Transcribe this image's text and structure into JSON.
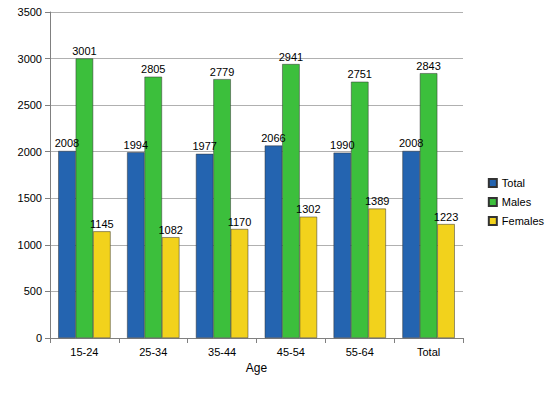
{
  "chart_data": {
    "type": "bar",
    "x_label": "Age",
    "categories": [
      "15-24",
      "25-34",
      "35-44",
      "45-54",
      "55-64",
      "Total"
    ],
    "series": [
      {
        "name": "Total",
        "color": "#2464b0",
        "values": [
          2008,
          1994,
          1977,
          2066,
          1990,
          2008
        ]
      },
      {
        "name": "Males",
        "color": "#3cbf3c",
        "values": [
          3001,
          2805,
          2779,
          2941,
          2751,
          2843
        ]
      },
      {
        "name": "Females",
        "color": "#f2d21c",
        "values": [
          1145,
          1082,
          1170,
          1302,
          1389,
          1223
        ]
      }
    ],
    "ylim": [
      0,
      3500
    ],
    "yticks": [
      0,
      500,
      1000,
      1500,
      2000,
      2500,
      3000,
      3500
    ],
    "grid": true,
    "legend": "right",
    "data_labels": true
  }
}
